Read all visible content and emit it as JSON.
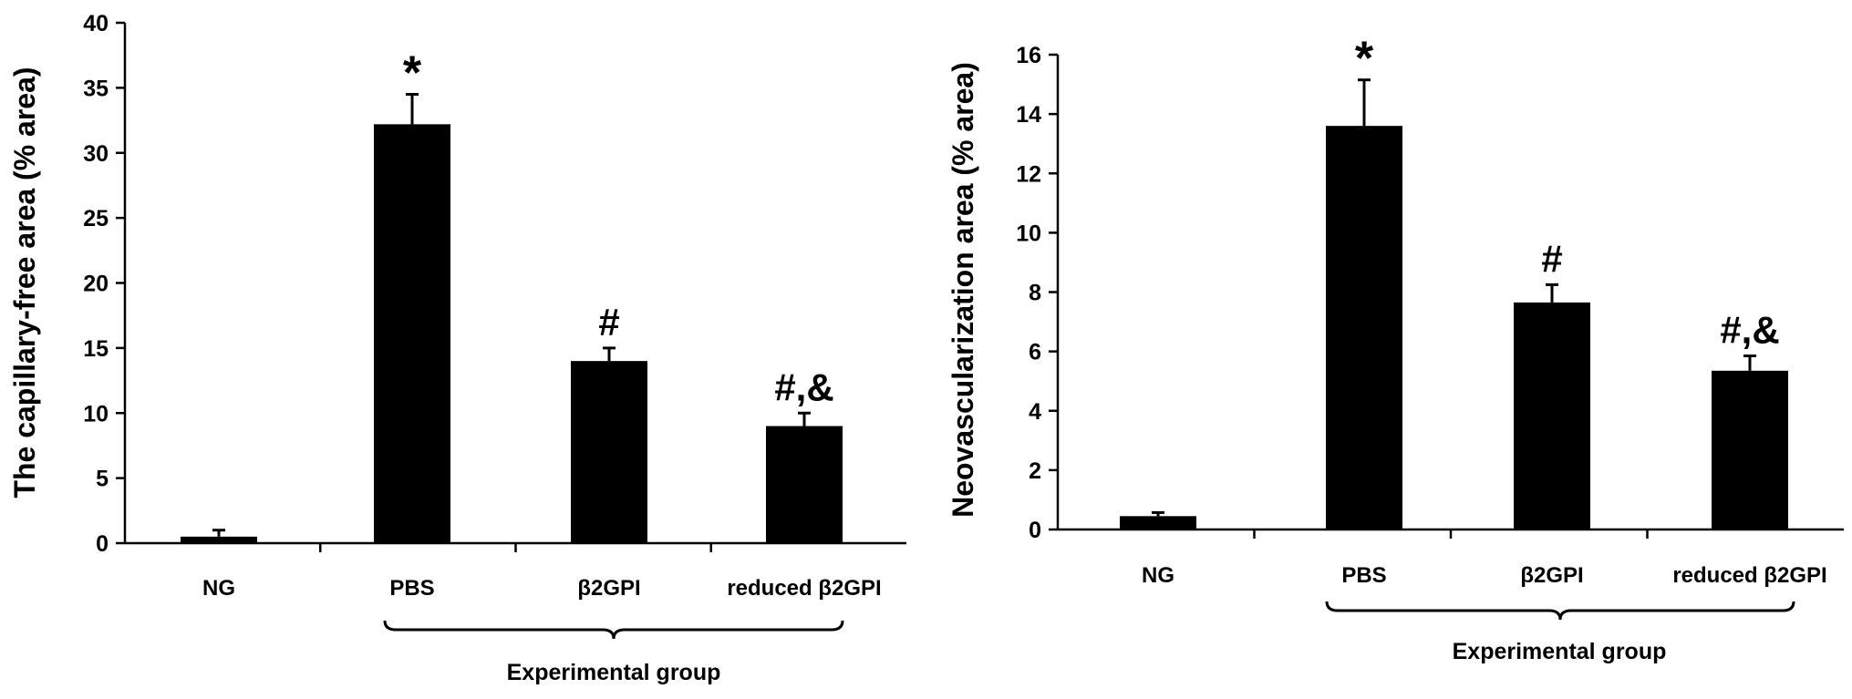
{
  "chart_data": [
    {
      "type": "bar",
      "ylabel": "The capillary-free area (% area)",
      "ylim": [
        0,
        40
      ],
      "yticks": [
        0,
        5,
        10,
        15,
        20,
        25,
        30,
        35,
        40
      ],
      "categories": [
        "NG",
        "PBS",
        "β2GPI",
        "reduced β2GPI"
      ],
      "values": [
        0.5,
        32.2,
        14.0,
        9.0
      ],
      "errors": [
        0.5,
        2.3,
        1.0,
        1.0
      ],
      "annotations": [
        "",
        "*",
        "#",
        "#,&"
      ],
      "group_label": "Experimental group",
      "grid": false
    },
    {
      "type": "bar",
      "ylabel": "Neovascularization area (% area)",
      "ylim": [
        0,
        16
      ],
      "yticks": [
        0,
        2,
        4,
        6,
        8,
        10,
        12,
        14,
        16
      ],
      "categories": [
        "NG",
        "PBS",
        "β2GPI",
        "reduced β2GPI"
      ],
      "values": [
        0.45,
        13.6,
        7.65,
        5.35
      ],
      "errors": [
        0.12,
        1.55,
        0.6,
        0.5
      ],
      "annotations": [
        "",
        "*",
        "#",
        "#,&"
      ],
      "group_label": "Experimental group",
      "grid": false
    }
  ]
}
